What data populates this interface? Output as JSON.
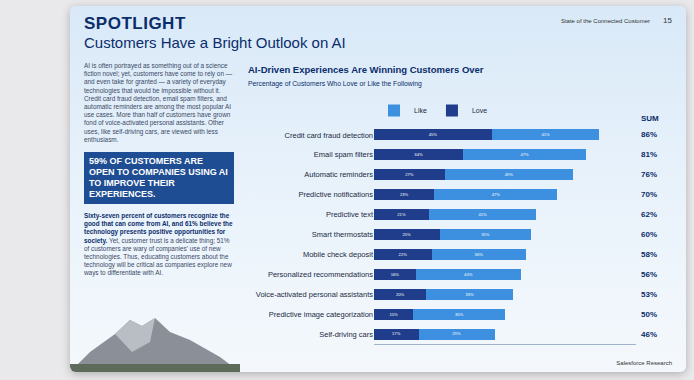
{
  "header": {
    "kicker": "SPOTLIGHT",
    "title": "Customers Have a Bright Outlook on AI",
    "running_head": "State of the Connected Customer",
    "page": "15"
  },
  "sidebar": {
    "intro": "AI is often portrayed as something out of a science fiction novel; yet, customers have come to rely on — and even take for granted — a variety of everyday technologies that would be impossible without it. Credit card fraud detection, email spam filters, and automatic reminders are among the most popular AI use cases. More than half of customers have grown fond of voice-activated personal assistants. Other uses, like self-driving cars, are viewed with less enthusiasm.",
    "callout": "59% OF CUSTOMERS ARE OPEN TO COMPANIES USING AI TO IMPROVE THEIR EXPERIENCES.",
    "lead": "Sixty-seven percent of customers recognize the good that can come from AI, and 61% believe the technology presents positive opportunities for society.",
    "body": "Yet, customer trust is a delicate thing; 51% of customers are wary of companies' use of new technologies. Thus, educating customers about the technology will be critical as companies explore new ways to differentiate with AI."
  },
  "chart_data": {
    "type": "bar",
    "orientation": "horizontal",
    "stacked": true,
    "data_labels": true,
    "title": "AI-Driven Experiences Are Winning Customers Over",
    "subtitle": "Percentage of Customers Who Love or Like the Following",
    "legend": "top left",
    "grid": false,
    "tick_labels": "y",
    "xlim": [
      0,
      100
    ],
    "categories": [
      "Credit card fraud detection",
      "Email spam filters",
      "Automatic reminders",
      "Predictive notifications",
      "Predictive text",
      "Smart thermostats",
      "Mobile check deposit",
      "Personalized recommendations",
      "Voice-activated personal assistants",
      "Predictive image categorization",
      "Self-driving cars"
    ],
    "series": [
      {
        "name": "Love",
        "color": "#1f3d8a",
        "values": [
          45,
          34,
          27,
          23,
          21,
          25,
          22,
          16,
          20,
          15,
          17
        ],
        "value_labels": [
          "45%",
          "34%",
          "27%",
          "23%",
          "21%",
          "25%",
          "22%",
          "16%",
          "20%",
          "15%",
          "17%"
        ]
      },
      {
        "name": "Like",
        "color": "#3d8fe0",
        "values": [
          41,
          47,
          49,
          47,
          41,
          35,
          36,
          40,
          33,
          35,
          29
        ],
        "value_labels": [
          "41%",
          "47%",
          "49%",
          "47%",
          "41%",
          "35%",
          "36%",
          "40%",
          "33%",
          "35%",
          "29%"
        ]
      }
    ],
    "totals": {
      "title": "SUM",
      "values": [
        86,
        81,
        76,
        70,
        62,
        60,
        58,
        56,
        53,
        50,
        46
      ],
      "value_labels": [
        "86%",
        "81%",
        "76%",
        "70%",
        "62%",
        "60%",
        "58%",
        "56%",
        "53%",
        "50%",
        "46%"
      ]
    }
  },
  "footer": "Salesforce Research"
}
